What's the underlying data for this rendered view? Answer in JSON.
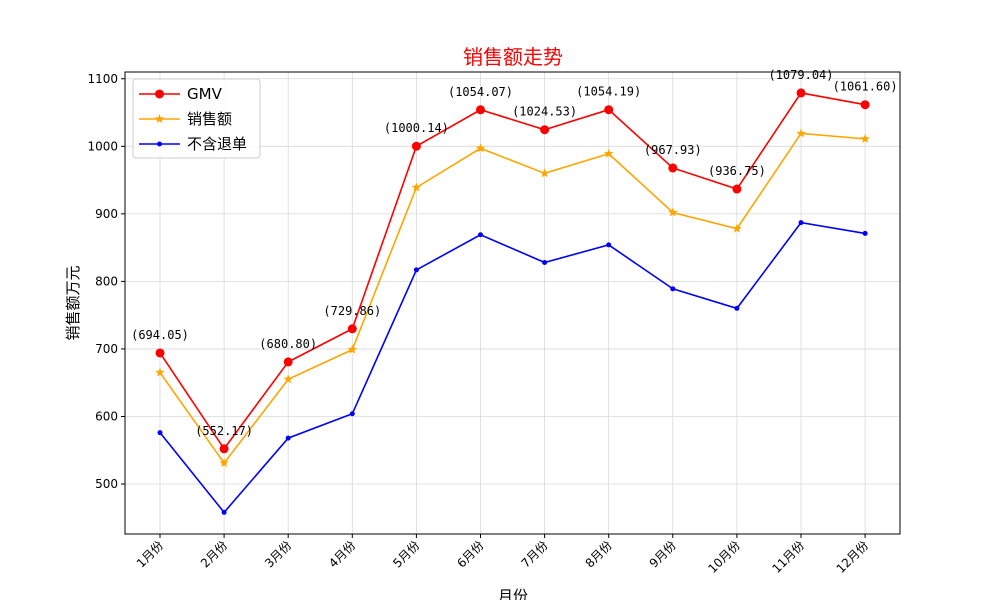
{
  "chart_data": {
    "type": "line",
    "title": "销售额走势",
    "xlabel": "月份",
    "ylabel": "销售额万元",
    "categories": [
      "1月份",
      "2月份",
      "3月份",
      "4月份",
      "5月份",
      "6月份",
      "7月份",
      "8月份",
      "9月份",
      "10月份",
      "11月份",
      "12月份"
    ],
    "series": [
      {
        "name": "GMV",
        "marker": "circle",
        "color": "#ff0000",
        "values": [
          694.05,
          552.17,
          680.8,
          729.86,
          1000.14,
          1054.07,
          1024.53,
          1054.19,
          967.93,
          936.75,
          1079.04,
          1061.6
        ]
      },
      {
        "name": "销售额",
        "marker": "star",
        "color": "#ffa500",
        "values": [
          665,
          531,
          655,
          699,
          939,
          997,
          960,
          989,
          902,
          878,
          1019,
          1011
        ]
      },
      {
        "name": "不含退单",
        "marker": "dot",
        "color": "#0000ff",
        "values": [
          576,
          458,
          568,
          604,
          817,
          869,
          828,
          854,
          789,
          760,
          887,
          871
        ]
      }
    ],
    "annotations": [
      "(694.05)",
      "(552.17)",
      "(680.80)",
      "(729.86)",
      "(1000.14)",
      "(1054.07)",
      "(1024.53)",
      "(1054.19)",
      "(967.93)",
      "(936.75)",
      "(1079.04)",
      "(1061.60)"
    ],
    "yticks": [
      500,
      600,
      700,
      800,
      900,
      1000,
      1100
    ],
    "ylim": [
      426,
      1110
    ],
    "grid": true,
    "legend_position": "upper-left",
    "title_color": "#ff0000"
  }
}
